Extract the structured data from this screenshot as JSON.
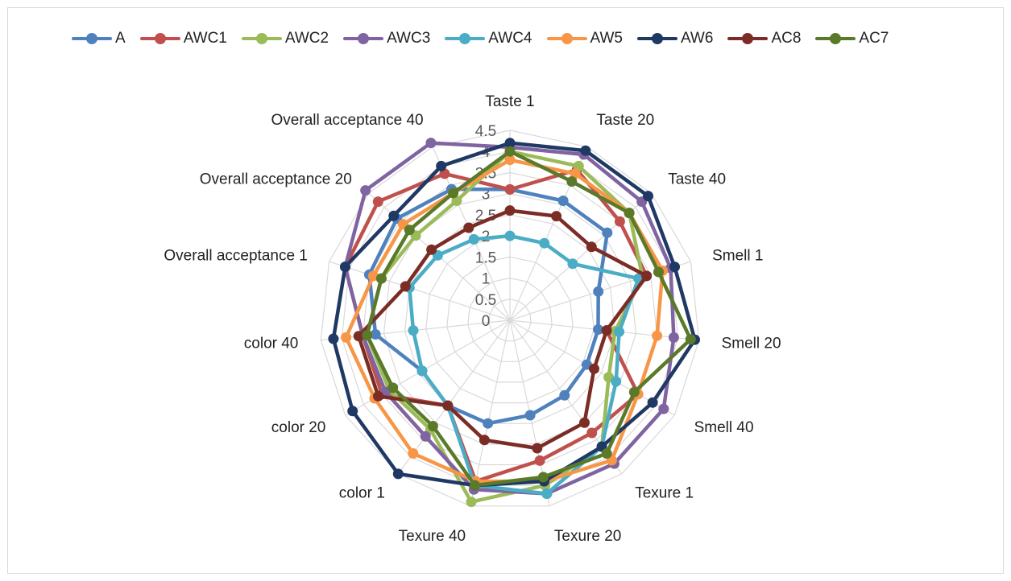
{
  "chart_data": {
    "type": "radar",
    "rmax": 4.5,
    "rticks": [
      0,
      0.5,
      1,
      1.5,
      2,
      2.5,
      3,
      3.5,
      4,
      4.5
    ],
    "rtick_labels": [
      "0",
      "0.5",
      "1",
      "1.5",
      "2",
      "2.5",
      "3",
      "3.5",
      "4",
      "4.5"
    ],
    "categories": [
      "Taste 1",
      "Taste 20",
      "Taste 40",
      "Smell 1",
      "Smell 20",
      "Smell 40",
      "Texure 1",
      "Texure 20",
      "Texure 40",
      "color 1",
      "color 20",
      "color 40",
      "Overall acceptance 1",
      "Overall acceptance 20",
      "Overall acceptance 40"
    ],
    "legend_position": "top",
    "grid": true,
    "series": [
      {
        "name": "A",
        "color": "#4f81bd",
        "values": [
          3.1,
          3.1,
          3.1,
          2.2,
          2.1,
          2.1,
          2.2,
          2.3,
          2.5,
          2.5,
          2.4,
          3.2,
          3.5,
          3.6,
          3.4
        ]
      },
      {
        "name": "AWC1",
        "color": "#c0504d",
        "values": [
          3.1,
          3.9,
          3.5,
          3.4,
          2.3,
          3.5,
          3.3,
          3.4,
          3.9,
          2.5,
          3.5,
          3.5,
          4.1,
          4.2,
          3.8
        ]
      },
      {
        "name": "AWC2",
        "color": "#9bbb59",
        "values": [
          4.0,
          4.0,
          3.8,
          3.3,
          2.5,
          2.7,
          3.7,
          4.0,
          4.4,
          3.2,
          3.3,
          3.4,
          3.2,
          3.0,
          3.1
        ]
      },
      {
        "name": "AWC3",
        "color": "#8064a2",
        "values": [
          4.1,
          4.3,
          4.2,
          4.0,
          3.9,
          4.2,
          4.2,
          4.2,
          4.1,
          3.4,
          3.4,
          3.5,
          4.1,
          4.6,
          4.6
        ]
      },
      {
        "name": "AWC4",
        "color": "#4bacc6",
        "values": [
          2.0,
          2.0,
          2.0,
          3.2,
          2.6,
          2.9,
          3.7,
          4.2,
          4.0,
          2.5,
          2.4,
          2.3,
          2.5,
          2.3,
          2.1
        ]
      },
      {
        "name": "AW5",
        "color": "#f79646",
        "values": [
          3.8,
          3.8,
          3.8,
          3.8,
          3.5,
          3.5,
          4.1,
          3.9,
          3.9,
          3.9,
          3.7,
          3.9,
          3.4,
          3.4,
          3.3
        ]
      },
      {
        "name": "AW6",
        "color": "#1f3864",
        "values": [
          4.2,
          4.4,
          4.4,
          4.1,
          4.4,
          3.9,
          3.7,
          3.9,
          4.0,
          4.5,
          4.3,
          4.2,
          4.1,
          3.7,
          4.0
        ]
      },
      {
        "name": "AC8",
        "color": "#7b2c25",
        "values": [
          2.6,
          2.7,
          2.6,
          3.4,
          2.3,
          2.3,
          3.0,
          3.1,
          2.9,
          2.5,
          3.6,
          3.6,
          2.6,
          2.5,
          2.4
        ]
      },
      {
        "name": "AC7",
        "color": "#5a7a2a",
        "values": [
          4.0,
          3.6,
          3.8,
          3.7,
          4.3,
          3.4,
          3.9,
          3.8,
          4.0,
          3.1,
          3.2,
          3.4,
          3.2,
          3.2,
          3.3
        ]
      }
    ]
  }
}
